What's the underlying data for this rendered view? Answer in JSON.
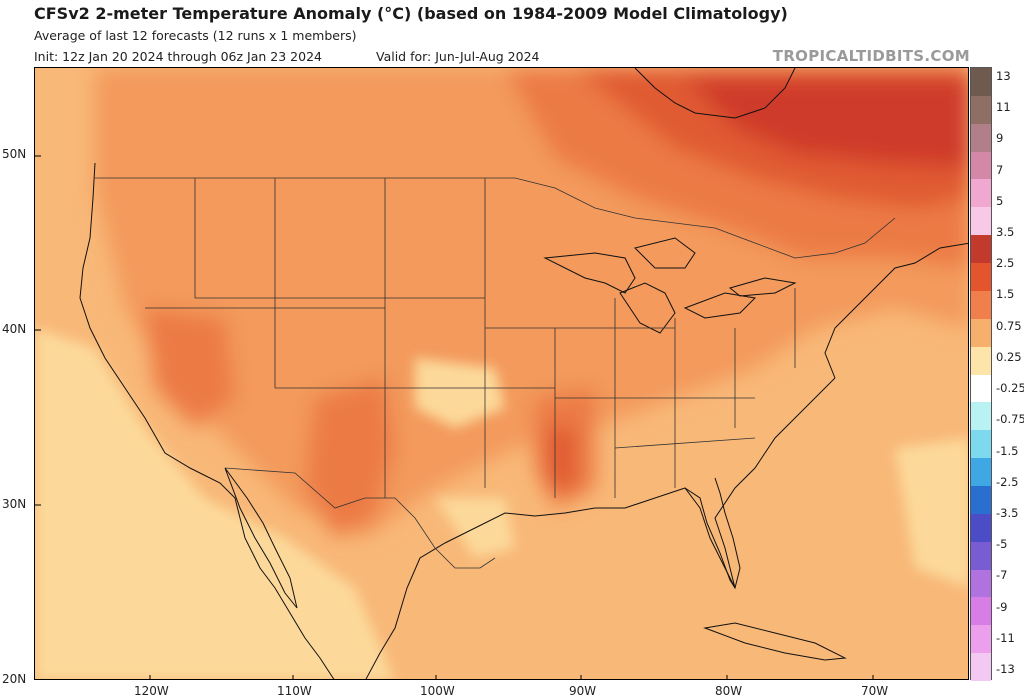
{
  "header": {
    "title": "CFSv2 2-meter Temperature Anomaly (°C) (based on 1984-2009 Model Climatology)",
    "subtitle": "Average of last 12 forecasts (12 runs x 1 members)",
    "init": "Init: 12z Jan 20 2024 through 06z Jan 23 2024",
    "valid": "Valid for: Jun-Jul-Aug 2024",
    "brand": "TROPICALTIDBITS.COM"
  },
  "map": {
    "lat_labels": [
      "50N",
      "40N",
      "30N",
      "20N"
    ],
    "lon_labels": [
      "120W",
      "110W",
      "100W",
      "90W",
      "80W",
      "70W"
    ]
  },
  "colorbar": {
    "labels": [
      "13",
      "11",
      "9",
      "7",
      "5",
      "3.5",
      "2.5",
      "1.5",
      "0.75",
      "0.25",
      "-0.25",
      "-0.75",
      "-1.5",
      "-2.5",
      "-3.5",
      "-5",
      "-7",
      "-9",
      "-11",
      "-13"
    ],
    "colors": [
      "#6e5a4e",
      "#8f6e66",
      "#b07f88",
      "#d488a8",
      "#f0a8d0",
      "#f7c9e6",
      "#c23a2c",
      "#e4552e",
      "#f07f4c",
      "#f6b06c",
      "#fde4a8",
      "#ffffff",
      "#b9f2f3",
      "#7cd9ee",
      "#3fa7e3",
      "#2a6fd0",
      "#4c4cc6",
      "#7a5cd2",
      "#b072de",
      "#d77de6",
      "#ec9fec",
      "#f3c8f3"
    ]
  },
  "colors": {
    "base": "#f8b878",
    "warm1": "#f39a5c",
    "warm2": "#ec7a45",
    "warm3": "#e05a32",
    "hot": "#cf3b2a",
    "cool": "#fcd99a",
    "coast": "#111111"
  }
}
